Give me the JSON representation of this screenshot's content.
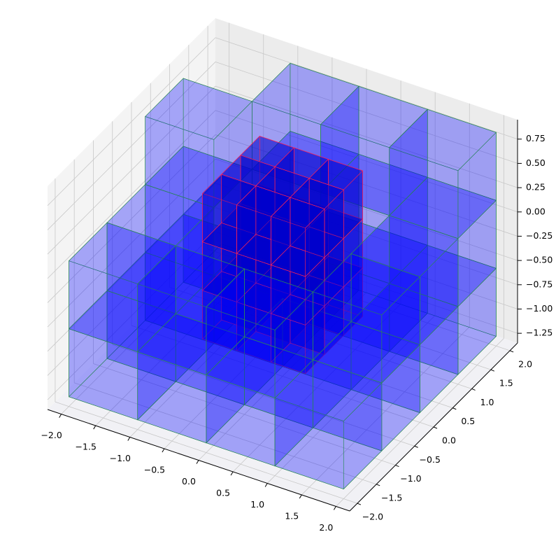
{
  "chart_data": {
    "type": "voxel3d",
    "xlim": [
      -2.2,
      2.2
    ],
    "ylim": [
      -2.2,
      2.2
    ],
    "zlim": [
      -1.35,
      0.95
    ],
    "xticks": [
      {
        "value": -2,
        "label": "−2.0"
      },
      {
        "value": -1.5,
        "label": "−1.5"
      },
      {
        "value": -1,
        "label": "−1.0"
      },
      {
        "value": -0.5,
        "label": "−0.5"
      },
      {
        "value": 0,
        "label": "0.0"
      },
      0.5,
      {
        "value": 1,
        "label": "1.0"
      },
      1.5,
      {
        "value": 2,
        "label": "2.0"
      }
    ],
    "yticks": [
      {
        "value": -2,
        "label": "−2.0"
      },
      {
        "value": -1.5,
        "label": "−1.5"
      },
      {
        "value": -1,
        "label": "−1.0"
      },
      {
        "value": -0.5,
        "label": "−0.5"
      },
      {
        "value": 0,
        "label": "0.0"
      },
      0.5,
      {
        "value": 1,
        "label": "1.0"
      },
      1.5,
      {
        "value": 2,
        "label": "2.0"
      }
    ],
    "zticks": [
      {
        "value": -1.25,
        "label": "−1.25"
      },
      {
        "value": -1,
        "label": "−1.00"
      },
      {
        "value": -0.75,
        "label": "−0.75"
      },
      {
        "value": -0.5,
        "label": "−0.50"
      },
      {
        "value": -0.25,
        "label": "−0.25"
      },
      {
        "value": 0,
        "label": "0.00"
      },
      0.25,
      {
        "value": 0.5,
        "label": "0.50"
      },
      0.75
    ],
    "grid": true,
    "voxel_groups": [
      {
        "face_color": "#0000ff",
        "face_opacity": 0.18,
        "edge_color": "#2e8b57",
        "size": [
          1,
          1,
          0.7
        ],
        "cells": [
          [
            -2,
            -2,
            -1.25
          ],
          [
            -2,
            -1,
            -1.25
          ],
          [
            -2,
            0,
            -1.25
          ],
          [
            -2,
            1,
            -1.25
          ],
          [
            -1,
            -2,
            -1.25
          ],
          [
            -1,
            -1,
            -1.25
          ],
          [
            -1,
            0,
            -1.25
          ],
          [
            -1,
            1,
            -1.25
          ],
          [
            0,
            -2,
            -1.25
          ],
          [
            0,
            -1,
            -1.25
          ],
          [
            0,
            0,
            -1.25
          ],
          [
            0,
            1,
            -1.25
          ],
          [
            1,
            -2,
            -1.25
          ],
          [
            1,
            -1,
            -1.25
          ],
          [
            1,
            0,
            -1.25
          ],
          [
            1,
            1,
            -1.25
          ],
          [
            -2,
            -2,
            -0.55
          ],
          [
            -2,
            -1,
            -0.55
          ],
          [
            -2,
            0,
            -0.55
          ],
          [
            -1,
            -2,
            -0.55
          ],
          [
            0,
            -2,
            -0.55
          ],
          [
            1,
            -1,
            -0.55
          ],
          [
            1,
            0,
            -0.55
          ],
          [
            1,
            1,
            -0.55
          ],
          [
            0,
            1,
            -0.55
          ],
          [
            -1,
            1,
            -0.55
          ],
          [
            -2,
            0,
            0.15
          ],
          [
            1,
            1,
            0.15
          ],
          [
            0,
            1,
            0.15
          ],
          [
            -1,
            1,
            0.15
          ]
        ]
      },
      {
        "face_color": "#0000cc",
        "face_opacity": 0.35,
        "edge_color": "#ff2255",
        "size": [
          0.5,
          0.5,
          0.5
        ],
        "cells": [
          [
            -0.75,
            -0.75,
            -0.85
          ],
          [
            -0.75,
            -0.25,
            -0.85
          ],
          [
            -0.75,
            0.25,
            -0.85
          ],
          [
            -0.25,
            -0.75,
            -0.85
          ],
          [
            -0.25,
            -0.25,
            -0.85
          ],
          [
            -0.25,
            0.25,
            -0.85
          ],
          [
            0.25,
            -0.75,
            -0.85
          ],
          [
            0.25,
            -0.25,
            -0.85
          ],
          [
            0.25,
            0.25,
            -0.85
          ],
          [
            -0.75,
            -0.75,
            -0.35
          ],
          [
            -0.75,
            -0.25,
            -0.35
          ],
          [
            -0.75,
            0.25,
            -0.35
          ],
          [
            -0.25,
            -0.75,
            -0.35
          ],
          [
            -0.25,
            -0.25,
            -0.35
          ],
          [
            -0.25,
            0.25,
            -0.35
          ],
          [
            0.25,
            -0.75,
            -0.35
          ],
          [
            0.25,
            -0.25,
            -0.35
          ],
          [
            0.25,
            0.25,
            -0.35
          ],
          [
            -0.75,
            -0.75,
            0.15
          ],
          [
            -0.75,
            -0.25,
            0.15
          ],
          [
            -0.75,
            0.25,
            0.15
          ],
          [
            -0.25,
            -0.75,
            0.15
          ],
          [
            -0.25,
            -0.25,
            0.15
          ],
          [
            -0.25,
            0.25,
            0.15
          ],
          [
            0.25,
            -0.75,
            0.15
          ],
          [
            0.25,
            -0.25,
            0.15
          ],
          [
            0.25,
            0.25,
            0.15
          ]
        ]
      }
    ]
  }
}
